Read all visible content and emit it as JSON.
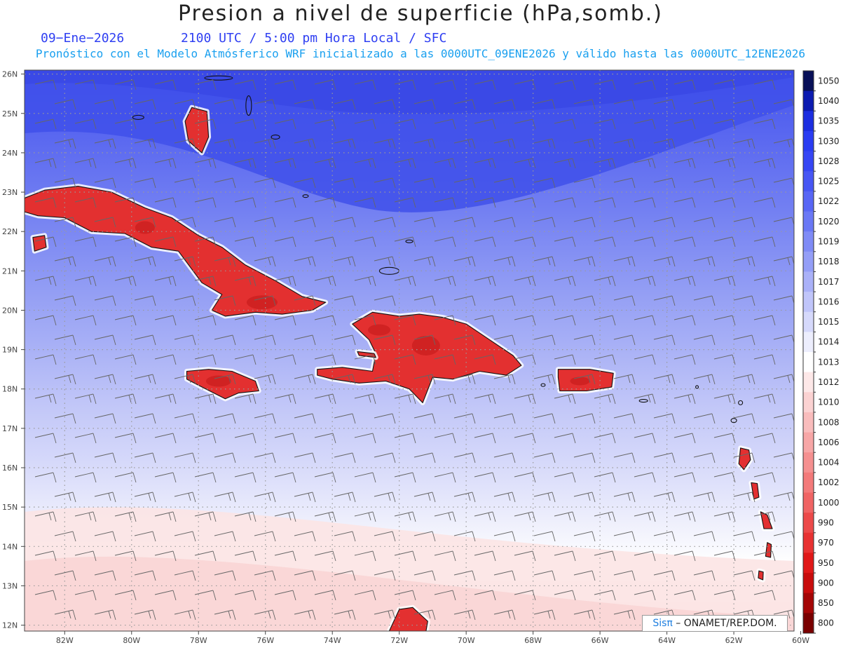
{
  "header": {
    "title": "Presion a nivel de superficie (hPa,somb.)",
    "date": "09−Ene−2026",
    "time_line": "2100 UTC / 5:00 pm Hora Local / SFC",
    "forecast_line": "Pronóstico con el Modelo Atmósferico WRF inicializado a las 0000UTC_09ENE2026 y válido hasta las  0000UTC_12ENE2026"
  },
  "map": {
    "lat_labels": [
      "26N",
      "25N",
      "24N",
      "23N",
      "22N",
      "21N",
      "20N",
      "19N",
      "18N",
      "17N",
      "16N",
      "15N",
      "14N",
      "13N",
      "12N"
    ],
    "lon_labels": [
      "82W",
      "80W",
      "78W",
      "76W",
      "74W",
      "72W",
      "70W",
      "68W",
      "66W",
      "64W",
      "62W",
      "60W"
    ],
    "extent": {
      "lon_min": -83.2,
      "lon_max": -60.2,
      "lat_min": 11.85,
      "lat_max": 26.1
    },
    "land_color": "#e33030",
    "land_dark_color": "#c81c1c"
  },
  "colorbar": {
    "labels": [
      "1050",
      "1040",
      "1035",
      "1030",
      "1028",
      "1025",
      "1022",
      "1020",
      "1019",
      "1018",
      "1017",
      "1016",
      "1015",
      "1014",
      "1013",
      "1012",
      "1010",
      "1008",
      "1006",
      "1004",
      "1002",
      "1000",
      "990",
      "970",
      "950",
      "900",
      "850",
      "800"
    ],
    "colors": [
      "#081058",
      "#0c1bb0",
      "#1c2ee0",
      "#2a3cf2",
      "#3646f4",
      "#4756f4",
      "#5866f5",
      "#6a78f5",
      "#7f8bf6",
      "#949ef7",
      "#aab1f8",
      "#c0c5fa",
      "#d6d9fb",
      "#edeefd",
      "#ffffff",
      "#fde8e8",
      "#fbd2d2",
      "#f9bcbc",
      "#f7a6a6",
      "#f59090",
      "#f37a7a",
      "#f06464",
      "#ec4a4a",
      "#e83232",
      "#e01818",
      "#c80c0c",
      "#a40606",
      "#7a0000"
    ]
  },
  "credit": {
    "brand": "Sisπ",
    "rest": " – ONAMET/REP.DOM."
  }
}
